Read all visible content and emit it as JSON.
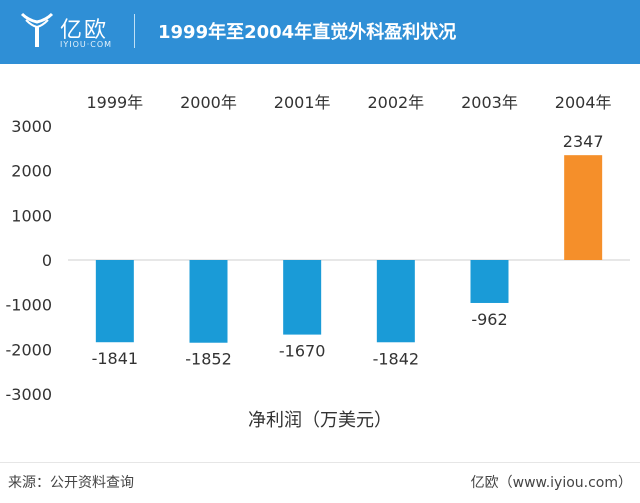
{
  "header": {
    "logo_text": "亿欧",
    "logo_sub": "IYIOU·COM",
    "title": "1999年至2004年直觉外科盈利状况"
  },
  "chart_data": {
    "type": "bar",
    "categories": [
      "1999年",
      "2000年",
      "2001年",
      "2002年",
      "2003年",
      "2004年"
    ],
    "series": [
      {
        "values": [
          -1841,
          -1852,
          -1670,
          -1842,
          -962,
          2347
        ]
      }
    ],
    "data_labels": [
      "-1841",
      "-1852",
      "-1670",
      "-1842",
      "-962",
      "2347"
    ],
    "title": "1999年至2004年直觉外科盈利状况",
    "xlabel": "净利润（万美元）",
    "ylabel": "",
    "ylim": [
      -3000,
      3000
    ],
    "yticks": [
      3000,
      2000,
      1000,
      0,
      -1000,
      -2000,
      -3000
    ],
    "colors": {
      "negative": "#1a9bd7",
      "positive": "#f58f2a"
    },
    "grid": false,
    "legend": "none"
  },
  "footer": {
    "source": "来源：公开资料查询",
    "credit": "亿欧（www.iyiou.com）"
  }
}
